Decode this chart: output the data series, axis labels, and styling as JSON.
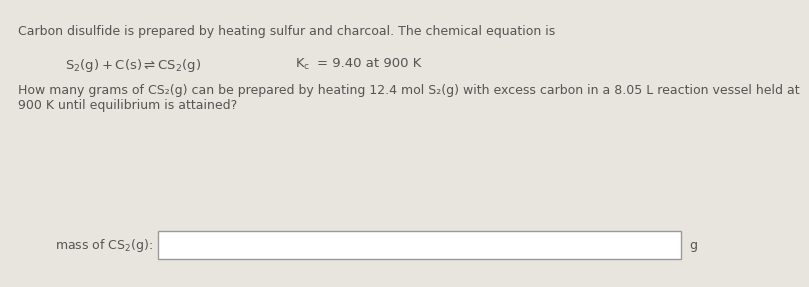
{
  "bg_color": "#e8e5de",
  "text_color": "#555555",
  "line1": "Carbon disulfide is prepared by heating sulfur and charcoal. The chemical equation is",
  "equation_left": "S",
  "kc_text": "K",
  "line3a": "How many grams of CS₂(g) can be prepared by heating 12.4 mol S₂(g) with excess carbon in a 8.05 L reaction vessel held at",
  "line3b": "900 K until equilibrium is attained?",
  "label": "mass of CS₂(g):",
  "unit": "g",
  "font_size": 9.0,
  "eq_font_size": 9.5
}
